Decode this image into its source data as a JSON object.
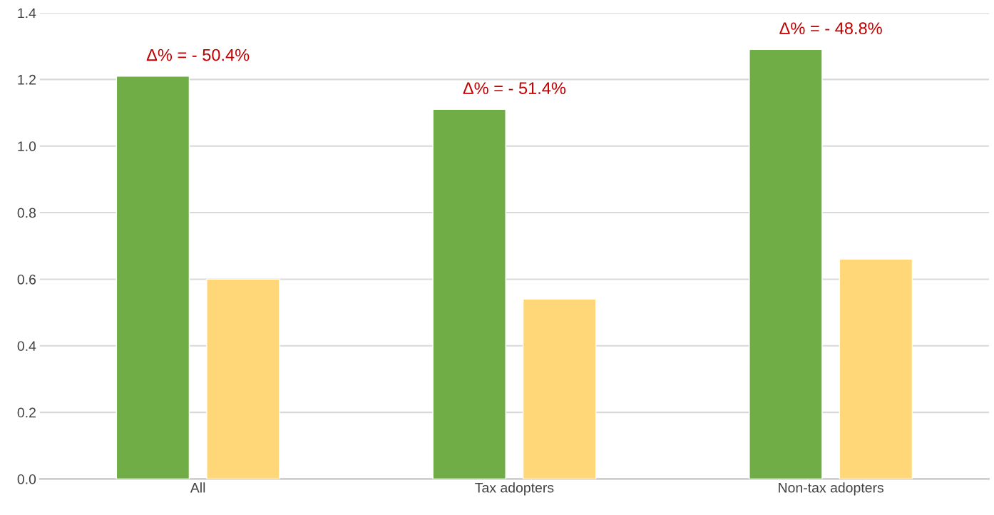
{
  "chart_data": {
    "type": "bar",
    "categories": [
      "All",
      "Tax adopters",
      "Non-tax adopters"
    ],
    "series": [
      {
        "color": "#70ad47",
        "values": [
          1.21,
          1.11,
          1.29
        ]
      },
      {
        "color": "#ffd779",
        "values": [
          0.6,
          0.54,
          0.66
        ]
      }
    ],
    "ylim": [
      0,
      1.4
    ],
    "yticks": [
      {
        "value": 0,
        "label": "0.0"
      },
      {
        "value": 0.2,
        "label": "0.2"
      },
      {
        "value": 0.4,
        "label": "0.4"
      },
      {
        "value": 0.6,
        "label": "0.6"
      },
      {
        "value": 0.8,
        "label": "0.8"
      },
      {
        "value": 1.0,
        "label": "1.0"
      },
      {
        "value": 1.2,
        "label": "1.2"
      },
      {
        "value": 1.4,
        "label": "1.4"
      }
    ],
    "grid": "y",
    "legend": false,
    "annotations": [
      "Δ% = - 50.4%",
      "Δ% = - 51.4%",
      "Δ% = - 48.8%"
    ]
  }
}
